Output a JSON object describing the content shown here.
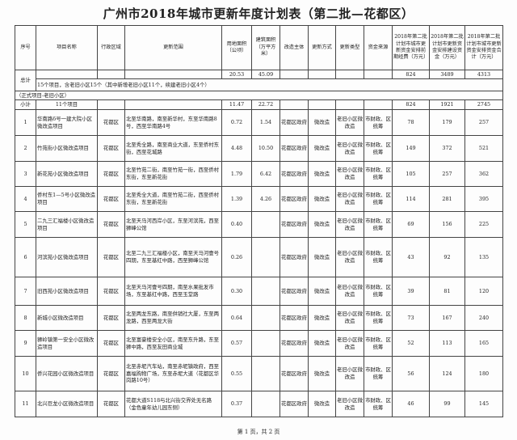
{
  "title": "广州市2018年城市更新年度计划表（第二批—花都区）",
  "headers": [
    "序号",
    "项目名称",
    "行政区域",
    "更新范围",
    "用地面积（公顷）",
    "建筑面积（万平方米）",
    "改造主体",
    "更新方式",
    "更新类型",
    "资金来源",
    "2018年第二批计划市城市更新资金安排前期经费（万元）",
    "2018年第二批计划市更新资金安排建设资金（万元）",
    "2018年第二批计划市城市更新资金安排资金合计（万元）"
  ],
  "total": {
    "label": "总计",
    "land": "20.53",
    "building": "45.09",
    "prelim": "824",
    "construction": "3489",
    "sum": "4313",
    "note": "15个项目，含老旧小区15个（其中新增老旧小区11个，续建老旧小区4个）"
  },
  "section": "（正式项目-老旧小区）",
  "subtotal": {
    "label": "小计",
    "count": "11个项目",
    "land": "11.47",
    "building": "22.72",
    "prelim": "824",
    "construction": "1921",
    "sum": "2745"
  },
  "rows": [
    {
      "no": "1",
      "name": "华南路6号一建大院小区微改造项目",
      "district": "花都区",
      "scope": "北至华南路，南至新华村，东至华南路8号，西至华南路4号",
      "land": "0.72",
      "building": "1.54",
      "subject": "花都区政府",
      "method": "微改造",
      "type": "老旧小区微改造",
      "fund": "市财政、区统筹",
      "prelim": "78",
      "construction": "179",
      "sum": "257"
    },
    {
      "no": "2",
      "name": "竹苑街小区微改造项目",
      "district": "花都区",
      "scope": "北至秀全路，南至商业大道，东至侨村东街，西至花城路",
      "land": "4.48",
      "building": "10.50",
      "subject": "花都区政府",
      "method": "微改造",
      "type": "老旧小区微改造",
      "fund": "市财政、区统筹",
      "prelim": "149",
      "construction": "372",
      "sum": "521"
    },
    {
      "no": "3",
      "name": "新花苑小区微改造项目",
      "district": "花都区",
      "scope": "北至竹苑二街，南至竹苑一街，西至侨村东街，东至新花街",
      "land": "1.79",
      "building": "6.42",
      "subject": "花都区政府",
      "method": "微改造",
      "type": "老旧小区微改造",
      "fund": "市财政、区统筹",
      "prelim": "105",
      "construction": "257",
      "sum": "362"
    },
    {
      "no": "4",
      "name": "侨村东1—5号小区微改造项目",
      "district": "花都区",
      "scope": "北至秀全大道，南至竹苑二街，西至侨村东街，东至新花街",
      "land": "1.39",
      "building": "4.26",
      "subject": "花都区政府",
      "method": "微改造",
      "type": "老旧小区微改造",
      "fund": "市财政、区统筹",
      "prelim": "114",
      "construction": "281",
      "sum": "395"
    },
    {
      "no": "5",
      "name": "二九三汇福楼小区微改造项目",
      "district": "花都区",
      "scope": "北至天马河西岸小区，东至河滨苑，西至狮峰公馆",
      "land": "0.40",
      "building": "",
      "subject": "花都区政府",
      "method": "微改造",
      "type": "老旧小区微改造",
      "fund": "市财政、区统筹",
      "prelim": "69",
      "construction": "156",
      "sum": "225"
    },
    {
      "no": "6",
      "name": "河滨苑小区微改造项目",
      "district": "花都区",
      "scope": "北至二九三汇福楼小区，南至天马河壹号四期，东至基红中路，西至狮峰公馆",
      "land": "0.26",
      "building": "",
      "subject": "花都区政府",
      "method": "微改造",
      "type": "老旧小区微改造",
      "fund": "市财政、区统筹",
      "prelim": "43",
      "construction": "92",
      "sum": "135"
    },
    {
      "no": "7",
      "name": "旧西苑小区微改造项目",
      "district": "花都区",
      "scope": "北至天马河壹号四期，南至水果批发市场，东至基红中路，西至玉堂路",
      "land": "0.30",
      "building": "",
      "subject": "花都区政府",
      "method": "微改造",
      "type": "老旧小区微改造",
      "fund": "市财政、区统筹",
      "prelim": "39",
      "construction": "81",
      "sum": "120"
    },
    {
      "no": "8",
      "name": "新城小区微改造项目",
      "district": "花都区",
      "scope": "北至两龙东路，南至供销社大厦，东至两龙路，西至两龙大街",
      "land": "0.64",
      "building": "",
      "subject": "花都区政府",
      "method": "微改造",
      "type": "老旧小区微改造",
      "fund": "市财政、区统筹",
      "prelim": "73",
      "construction": "167",
      "sum": "240"
    },
    {
      "no": "9",
      "name": "狮岭镇第一安全小区微改造项目",
      "district": "花都区",
      "scope": "北至富豪楼安全小区，南至东升路，东至狮中路，西至友田商业城",
      "land": "0.57",
      "building": "",
      "subject": "花都区政府",
      "method": "微改造",
      "type": "老旧小区微改造",
      "fund": "市财政、区统筹",
      "prelim": "52",
      "construction": "113",
      "sum": "165"
    },
    {
      "no": "10",
      "name": "侨兴花园小区微改造项目",
      "district": "花都区",
      "scope": "北至赤坭汽车站，南至赤坭镇政府，西至嘉福购物广场，东至赤坭大道（花都区华岗路10号）",
      "land": "0.55",
      "building": "",
      "subject": "花都区政府",
      "method": "微改造",
      "type": "老旧小区微改造",
      "fund": "市财政、区统筹",
      "prelim": "56",
      "construction": "124",
      "sum": "180"
    },
    {
      "no": "11",
      "name": "北兴巨龙小区微改造项目",
      "district": "花都区",
      "scope": "花都大道S118与北兴街交界处无名路（金色童年幼儿园东侧）",
      "land": "0.37",
      "building": "",
      "subject": "花都区政府",
      "method": "微改造",
      "type": "老旧小区微改造",
      "fund": "市财政、区统筹",
      "prelim": "46",
      "construction": "99",
      "sum": "145"
    }
  ],
  "footer": "第 1 页，共 2 页"
}
